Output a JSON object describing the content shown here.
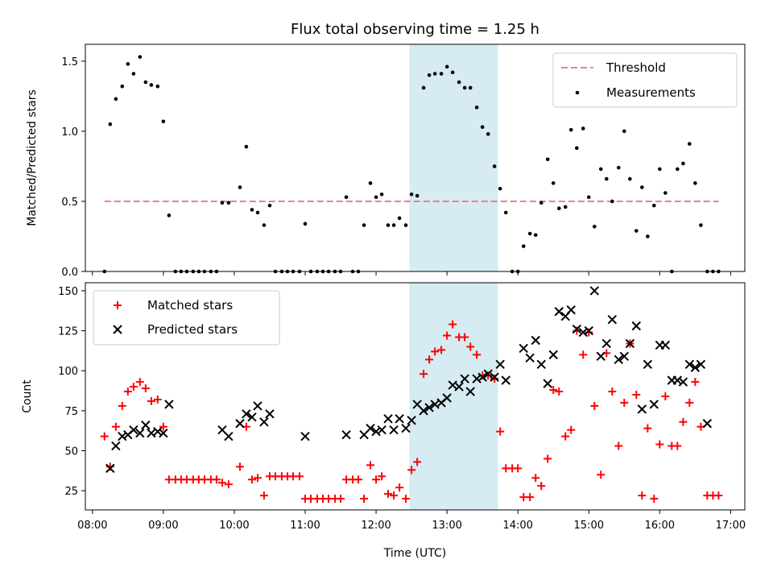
{
  "chart_data": [
    {
      "type": "scatter",
      "title": "Flux total observing time = 1.25 h",
      "xlabel": "",
      "ylabel": "Matched/Predicted stars",
      "xlim": [
        7.9,
        17.2
      ],
      "ylim": [
        0,
        1.62
      ],
      "xticks": [
        8,
        9,
        10,
        11,
        12,
        13,
        14,
        15,
        16,
        17
      ],
      "yticks": [
        {
          "value": 0.0,
          "label": "0.0"
        },
        {
          "value": 0.5,
          "label": "0.5"
        },
        {
          "value": 1.0,
          "label": "1.0"
        },
        {
          "value": 1.5,
          "label": "1.5"
        }
      ],
      "shaded_region": {
        "x0": 12.47,
        "x1": 13.72,
        "color": "#add8e6"
      },
      "legend_position": "top-right",
      "threshold": {
        "name": "Threshold",
        "value": 0.5,
        "x0": 8.17,
        "x1": 16.83,
        "color": "#f08080"
      },
      "series": [
        {
          "name": "Measurements",
          "color": "#000000",
          "marker": "dot",
          "x": [
            8.17,
            8.25,
            8.33,
            8.42,
            8.5,
            8.58,
            8.67,
            8.75,
            8.83,
            8.92,
            9.0,
            9.08,
            9.17,
            9.25,
            9.33,
            9.42,
            9.5,
            9.58,
            9.67,
            9.75,
            9.83,
            9.92,
            10.08,
            10.17,
            10.25,
            10.33,
            10.42,
            10.5,
            10.58,
            10.67,
            10.75,
            10.83,
            10.92,
            11.0,
            11.08,
            11.17,
            11.25,
            11.33,
            11.42,
            11.5,
            11.58,
            11.67,
            11.75,
            11.83,
            11.92,
            12.0,
            12.08,
            12.17,
            12.25,
            12.33,
            12.42,
            12.5,
            12.58,
            12.67,
            12.75,
            12.83,
            12.92,
            13.0,
            13.08,
            13.17,
            13.25,
            13.33,
            13.42,
            13.5,
            13.58,
            13.67,
            13.75,
            13.83,
            13.92,
            14.0,
            14.08,
            14.17,
            14.25,
            14.33,
            14.42,
            14.5,
            14.58,
            14.67,
            14.75,
            14.83,
            14.92,
            15.0,
            15.08,
            15.17,
            15.25,
            15.33,
            15.42,
            15.5,
            15.58,
            15.67,
            15.75,
            15.83,
            15.92,
            16.0,
            16.08,
            16.17,
            16.25,
            16.33,
            16.42,
            16.5,
            16.58,
            16.67,
            16.75,
            16.83
          ],
          "y": [
            0.0,
            1.05,
            1.23,
            1.32,
            1.48,
            1.41,
            1.53,
            1.35,
            1.33,
            1.32,
            1.07,
            0.4,
            0.0,
            0.0,
            0.0,
            0.0,
            0.0,
            0.0,
            0.0,
            0.0,
            0.49,
            0.49,
            0.6,
            0.89,
            0.44,
            0.42,
            0.33,
            0.47,
            0.0,
            0.0,
            0.0,
            0.0,
            0.0,
            0.34,
            0.0,
            0.0,
            0.0,
            0.0,
            0.0,
            0.0,
            0.53,
            0.0,
            0.0,
            0.33,
            0.63,
            0.53,
            0.55,
            0.33,
            0.33,
            0.38,
            0.33,
            0.55,
            0.54,
            1.31,
            1.4,
            1.41,
            1.41,
            1.46,
            1.42,
            1.35,
            1.31,
            1.31,
            1.17,
            1.03,
            0.98,
            0.75,
            0.59,
            0.42,
            0.0,
            0.0,
            0.18,
            0.27,
            0.26,
            0.49,
            0.8,
            0.63,
            0.45,
            0.46,
            1.01,
            0.88,
            1.02,
            0.53,
            0.32,
            0.73,
            0.66,
            0.5,
            0.74,
            1.0,
            0.66,
            0.29,
            0.6,
            0.25,
            0.47,
            0.73,
            0.56,
            0.0,
            0.73,
            0.77,
            0.91,
            0.63,
            0.33,
            0.0,
            0.0,
            0.0
          ]
        }
      ]
    },
    {
      "type": "scatter",
      "title": "",
      "xlabel": "Time (UTC)",
      "ylabel": "Count",
      "xlim": [
        7.9,
        17.2
      ],
      "ylim": [
        13,
        155
      ],
      "xticks": [
        {
          "value": 8,
          "label": "08:00"
        },
        {
          "value": 9,
          "label": "09:00"
        },
        {
          "value": 10,
          "label": "10:00"
        },
        {
          "value": 11,
          "label": "11:00"
        },
        {
          "value": 12,
          "label": "12:00"
        },
        {
          "value": 13,
          "label": "13:00"
        },
        {
          "value": 14,
          "label": "14:00"
        },
        {
          "value": 15,
          "label": "15:00"
        },
        {
          "value": 16,
          "label": "16:00"
        },
        {
          "value": 17,
          "label": "17:00"
        }
      ],
      "yticks": [
        {
          "value": 25,
          "label": "25"
        },
        {
          "value": 50,
          "label": "50"
        },
        {
          "value": 75,
          "label": "75"
        },
        {
          "value": 100,
          "label": "100"
        },
        {
          "value": 125,
          "label": "125"
        },
        {
          "value": 150,
          "label": "150"
        }
      ],
      "shaded_region": {
        "x0": 12.47,
        "x1": 13.72,
        "color": "#add8e6"
      },
      "legend_position": "top-left",
      "series": [
        {
          "name": "Matched stars",
          "color": "#ff0000",
          "marker": "plus",
          "x": [
            8.17,
            8.25,
            8.33,
            8.42,
            8.5,
            8.58,
            8.67,
            8.75,
            8.83,
            8.92,
            9.0,
            9.08,
            9.17,
            9.25,
            9.33,
            9.42,
            9.5,
            9.58,
            9.67,
            9.75,
            9.83,
            9.92,
            10.08,
            10.17,
            10.25,
            10.33,
            10.42,
            10.5,
            10.58,
            10.67,
            10.75,
            10.83,
            10.92,
            11.0,
            11.08,
            11.17,
            11.25,
            11.33,
            11.42,
            11.5,
            11.58,
            11.67,
            11.75,
            11.83,
            11.92,
            12.0,
            12.08,
            12.17,
            12.25,
            12.33,
            12.42,
            12.5,
            12.58,
            12.67,
            12.75,
            12.83,
            12.92,
            13.0,
            13.08,
            13.17,
            13.25,
            13.33,
            13.42,
            13.5,
            13.58,
            13.67,
            13.75,
            13.83,
            13.92,
            14.0,
            14.08,
            14.17,
            14.25,
            14.33,
            14.42,
            14.5,
            14.58,
            14.67,
            14.75,
            14.83,
            14.92,
            15.0,
            15.08,
            15.17,
            15.25,
            15.33,
            15.42,
            15.5,
            15.58,
            15.67,
            15.75,
            15.83,
            15.92,
            16.0,
            16.08,
            16.17,
            16.25,
            16.33,
            16.42,
            16.5,
            16.58,
            16.67,
            16.75,
            16.83
          ],
          "y": [
            59,
            40,
            65,
            78,
            87,
            90,
            93,
            89,
            81,
            82,
            65,
            32,
            32,
            32,
            32,
            32,
            32,
            32,
            32,
            32,
            30,
            29,
            40,
            65,
            32,
            33,
            22,
            34,
            34,
            34,
            34,
            34,
            34,
            20,
            20,
            20,
            20,
            20,
            20,
            20,
            32,
            32,
            32,
            20,
            41,
            32,
            34,
            23,
            22,
            27,
            20,
            38,
            43,
            98,
            107,
            112,
            113,
            122,
            129,
            121,
            121,
            115,
            110,
            97,
            97,
            95,
            62,
            39,
            39,
            39,
            21,
            21,
            33,
            28,
            45,
            88,
            87,
            59,
            63,
            125,
            110,
            124,
            78,
            35,
            111,
            87,
            53,
            80,
            117,
            85,
            22,
            64,
            20,
            54,
            84,
            53,
            53,
            68,
            80,
            93,
            65,
            22,
            22,
            22
          ]
        },
        {
          "name": "Predicted stars",
          "color": "#000000",
          "marker": "x",
          "x": [
            8.25,
            8.33,
            8.42,
            8.5,
            8.58,
            8.67,
            8.75,
            8.83,
            8.92,
            9.0,
            9.08,
            9.83,
            9.92,
            10.08,
            10.17,
            10.25,
            10.33,
            10.42,
            10.5,
            11.0,
            11.58,
            11.83,
            11.92,
            12.0,
            12.08,
            12.17,
            12.25,
            12.33,
            12.42,
            12.5,
            12.58,
            12.67,
            12.75,
            12.83,
            12.92,
            13.0,
            13.08,
            13.17,
            13.25,
            13.33,
            13.42,
            13.5,
            13.58,
            13.67,
            13.75,
            13.83,
            14.08,
            14.17,
            14.25,
            14.33,
            14.42,
            14.5,
            14.58,
            14.67,
            14.75,
            14.83,
            14.92,
            15.0,
            15.08,
            15.17,
            15.25,
            15.33,
            15.42,
            15.5,
            15.58,
            15.67,
            15.75,
            15.83,
            15.92,
            16.0,
            16.08,
            16.17,
            16.25,
            16.33,
            16.42,
            16.5,
            16.58,
            16.67
          ],
          "y": [
            39,
            53,
            59,
            60,
            63,
            61,
            66,
            61,
            62,
            61,
            79,
            63,
            59,
            67,
            73,
            71,
            78,
            68,
            73,
            59,
            60,
            60,
            64,
            62,
            63,
            70,
            63,
            70,
            64,
            69,
            79,
            75,
            77,
            79,
            80,
            83,
            91,
            90,
            95,
            87,
            95,
            96,
            98,
            96,
            104,
            94,
            114,
            108,
            119,
            104,
            92,
            110,
            137,
            134,
            138,
            126,
            124,
            125,
            150,
            109,
            117,
            132,
            107,
            109,
            117,
            128,
            76,
            104,
            79,
            116,
            116,
            94,
            94,
            93,
            104,
            102,
            104,
            67
          ]
        }
      ]
    }
  ]
}
